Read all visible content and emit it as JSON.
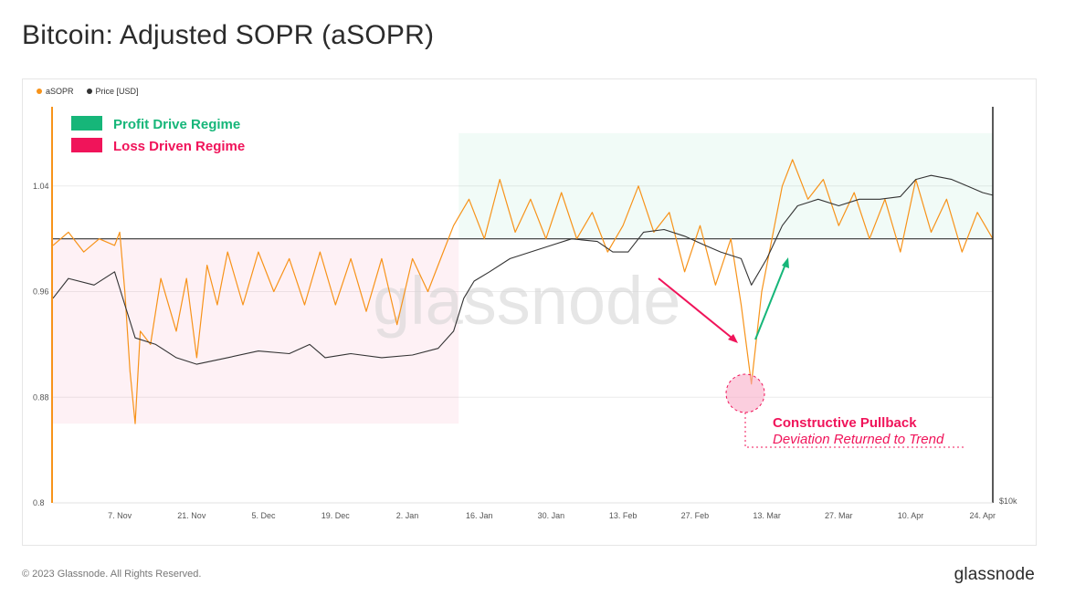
{
  "header": {
    "title": "Bitcoin: Adjusted SOPR (aSOPR)"
  },
  "legend": {
    "items": [
      {
        "label": "aSOPR",
        "color": "#f7931a"
      },
      {
        "label": "Price [USD]",
        "color": "#333333"
      }
    ]
  },
  "annotations": {
    "profit_regime": {
      "label": "Profit Drive Regime",
      "color": "#16b679"
    },
    "loss_regime": {
      "label": "Loss Driven Regime",
      "color": "#f0145a"
    },
    "pullback_title": "Constructive Pullback",
    "pullback_subtitle": "Deviation Returned to Trend"
  },
  "watermark": "glassnode",
  "footer": {
    "copyright": "© 2023 Glassnode. All Rights Reserved.",
    "brand": "glassnode"
  },
  "chart_data": {
    "type": "line",
    "title": "Bitcoin: Adjusted SOPR (aSOPR)",
    "x_ticks": [
      "7. Nov",
      "21. Nov",
      "5. Dec",
      "19. Dec",
      "2. Jan",
      "16. Jan",
      "30. Jan",
      "13. Feb",
      "27. Feb",
      "13. Mar",
      "27. Mar",
      "10. Apr",
      "24. Apr"
    ],
    "y_left_ticks": [
      "0.8",
      "0.88",
      "0.96",
      "1.04"
    ],
    "y_left_range": [
      0.8,
      1.1
    ],
    "y_right_ticks": [
      "$10k"
    ],
    "reference_line": 1.0,
    "series": [
      {
        "name": "aSOPR",
        "color": "#f7931a",
        "points": [
          [
            "2022-10-25",
            0.995
          ],
          [
            "2022-10-28",
            1.005
          ],
          [
            "2022-10-31",
            0.99
          ],
          [
            "2022-11-03",
            1.0
          ],
          [
            "2022-11-06",
            0.995
          ],
          [
            "2022-11-07",
            1.005
          ],
          [
            "2022-11-08",
            0.96
          ],
          [
            "2022-11-09",
            0.9
          ],
          [
            "2022-11-10",
            0.86
          ],
          [
            "2022-11-11",
            0.93
          ],
          [
            "2022-11-13",
            0.92
          ],
          [
            "2022-11-15",
            0.97
          ],
          [
            "2022-11-18",
            0.93
          ],
          [
            "2022-11-20",
            0.97
          ],
          [
            "2022-11-22",
            0.91
          ],
          [
            "2022-11-24",
            0.98
          ],
          [
            "2022-11-26",
            0.95
          ],
          [
            "2022-11-28",
            0.99
          ],
          [
            "2022-12-01",
            0.95
          ],
          [
            "2022-12-04",
            0.99
          ],
          [
            "2022-12-07",
            0.96
          ],
          [
            "2022-12-10",
            0.985
          ],
          [
            "2022-12-13",
            0.95
          ],
          [
            "2022-12-16",
            0.99
          ],
          [
            "2022-12-19",
            0.95
          ],
          [
            "2022-12-22",
            0.985
          ],
          [
            "2022-12-25",
            0.945
          ],
          [
            "2022-12-28",
            0.985
          ],
          [
            "2022-12-31",
            0.935
          ],
          [
            "2023-01-03",
            0.985
          ],
          [
            "2023-01-06",
            0.96
          ],
          [
            "2023-01-09",
            0.99
          ],
          [
            "2023-01-11",
            1.01
          ],
          [
            "2023-01-14",
            1.03
          ],
          [
            "2023-01-17",
            1.0
          ],
          [
            "2023-01-20",
            1.045
          ],
          [
            "2023-01-23",
            1.005
          ],
          [
            "2023-01-26",
            1.03
          ],
          [
            "2023-01-29",
            1.0
          ],
          [
            "2023-02-01",
            1.035
          ],
          [
            "2023-02-04",
            1.0
          ],
          [
            "2023-02-07",
            1.02
          ],
          [
            "2023-02-10",
            0.99
          ],
          [
            "2023-02-13",
            1.01
          ],
          [
            "2023-02-16",
            1.04
          ],
          [
            "2023-02-19",
            1.005
          ],
          [
            "2023-02-22",
            1.02
          ],
          [
            "2023-02-25",
            0.975
          ],
          [
            "2023-02-28",
            1.01
          ],
          [
            "2023-03-03",
            0.965
          ],
          [
            "2023-03-06",
            1.0
          ],
          [
            "2023-03-08",
            0.95
          ],
          [
            "2023-03-10",
            0.89
          ],
          [
            "2023-03-12",
            0.96
          ],
          [
            "2023-03-14",
            1.0
          ],
          [
            "2023-03-16",
            1.04
          ],
          [
            "2023-03-18",
            1.06
          ],
          [
            "2023-03-21",
            1.03
          ],
          [
            "2023-03-24",
            1.045
          ],
          [
            "2023-03-27",
            1.01
          ],
          [
            "2023-03-30",
            1.035
          ],
          [
            "2023-04-02",
            1.0
          ],
          [
            "2023-04-05",
            1.03
          ],
          [
            "2023-04-08",
            0.99
          ],
          [
            "2023-04-11",
            1.045
          ],
          [
            "2023-04-14",
            1.005
          ],
          [
            "2023-04-17",
            1.03
          ],
          [
            "2023-04-20",
            0.99
          ],
          [
            "2023-04-23",
            1.02
          ],
          [
            "2023-04-26",
            1.0
          ]
        ]
      },
      {
        "name": "Price [USD]",
        "color": "#333333",
        "points": [
          [
            "2022-10-25",
            0.955
          ],
          [
            "2022-10-28",
            0.97
          ],
          [
            "2022-11-02",
            0.965
          ],
          [
            "2022-11-06",
            0.975
          ],
          [
            "2022-11-08",
            0.95
          ],
          [
            "2022-11-10",
            0.925
          ],
          [
            "2022-11-14",
            0.92
          ],
          [
            "2022-11-18",
            0.91
          ],
          [
            "2022-11-22",
            0.905
          ],
          [
            "2022-11-28",
            0.91
          ],
          [
            "2022-12-04",
            0.915
          ],
          [
            "2022-12-10",
            0.913
          ],
          [
            "2022-12-14",
            0.92
          ],
          [
            "2022-12-17",
            0.91
          ],
          [
            "2022-12-22",
            0.913
          ],
          [
            "2022-12-28",
            0.91
          ],
          [
            "2023-01-03",
            0.912
          ],
          [
            "2023-01-08",
            0.917
          ],
          [
            "2023-01-11",
            0.93
          ],
          [
            "2023-01-13",
            0.955
          ],
          [
            "2023-01-15",
            0.968
          ],
          [
            "2023-01-18",
            0.975
          ],
          [
            "2023-01-22",
            0.985
          ],
          [
            "2023-01-26",
            0.99
          ],
          [
            "2023-01-30",
            0.995
          ],
          [
            "2023-02-03",
            1.0
          ],
          [
            "2023-02-08",
            0.998
          ],
          [
            "2023-02-11",
            0.99
          ],
          [
            "2023-02-14",
            0.99
          ],
          [
            "2023-02-17",
            1.005
          ],
          [
            "2023-02-21",
            1.007
          ],
          [
            "2023-02-25",
            1.002
          ],
          [
            "2023-03-01",
            0.995
          ],
          [
            "2023-03-04",
            0.99
          ],
          [
            "2023-03-08",
            0.985
          ],
          [
            "2023-03-10",
            0.965
          ],
          [
            "2023-03-13",
            0.985
          ],
          [
            "2023-03-16",
            1.01
          ],
          [
            "2023-03-19",
            1.025
          ],
          [
            "2023-03-23",
            1.03
          ],
          [
            "2023-03-27",
            1.025
          ],
          [
            "2023-03-31",
            1.03
          ],
          [
            "2023-04-04",
            1.03
          ],
          [
            "2023-04-08",
            1.032
          ],
          [
            "2023-04-11",
            1.045
          ],
          [
            "2023-04-14",
            1.048
          ],
          [
            "2023-04-18",
            1.045
          ],
          [
            "2023-04-21",
            1.04
          ],
          [
            "2023-04-24",
            1.035
          ],
          [
            "2023-04-26",
            1.033
          ]
        ]
      }
    ],
    "regimes": [
      {
        "label": "Loss Driven Regime",
        "from": "2022-10-25",
        "to": "2023-01-12",
        "y_range": [
          0.86,
          1.0
        ],
        "color": "#f0145a"
      },
      {
        "label": "Profit Drive Regime",
        "from": "2023-01-12",
        "to": "2023-04-26",
        "y_range": [
          1.0,
          1.08
        ],
        "color": "#16b679"
      }
    ],
    "callouts": [
      {
        "label": "Constructive Pullback",
        "date": "2023-03-10",
        "value": 0.89
      }
    ],
    "grid": true,
    "legend_position": "top-left"
  }
}
